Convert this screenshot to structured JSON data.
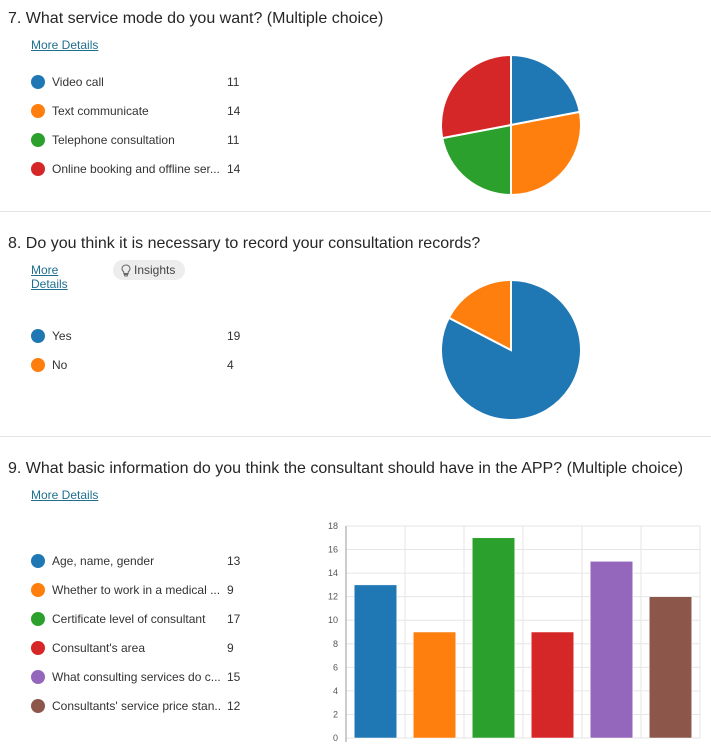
{
  "questions": [
    {
      "title": "7. What service mode do you want? (Multiple choice)",
      "more_details": "More Details"
    },
    {
      "title": "8. Do you think it is necessary to record your consultation records?",
      "more_details": "More Details",
      "insights": "Insights"
    },
    {
      "title": "9. What basic information do you think the consultant should have in the APP? (Multiple choice)",
      "more_details": "More Details"
    }
  ],
  "chart_data": [
    {
      "type": "pie",
      "categories": [
        "Video call",
        "Text communicate",
        "Telephone consultation",
        "Online booking and offline ser..."
      ],
      "values": [
        11,
        14,
        11,
        14
      ],
      "colors": [
        "#1f77b4",
        "#ff7f0e",
        "#2ca02c",
        "#d62728"
      ]
    },
    {
      "type": "pie",
      "categories": [
        "Yes",
        "No"
      ],
      "values": [
        19,
        4
      ],
      "colors": [
        "#1f77b4",
        "#ff7f0e"
      ]
    },
    {
      "type": "bar",
      "categories": [
        "Age, name, gender",
        "Whether to work in a medical ...",
        "Certificate level of consultant",
        "Consultant's area",
        "What consulting services do c...",
        "Consultants' service price stan..."
      ],
      "values": [
        13,
        9,
        17,
        9,
        15,
        12
      ],
      "colors": [
        "#1f77b4",
        "#ff7f0e",
        "#2ca02c",
        "#d62728",
        "#9467bd",
        "#8c564b"
      ],
      "ylim": [
        0,
        18
      ],
      "yticks": [
        "0",
        "2",
        "4",
        "6",
        "8",
        "10",
        "12",
        "14",
        "16",
        "18"
      ],
      "grid": true
    }
  ]
}
